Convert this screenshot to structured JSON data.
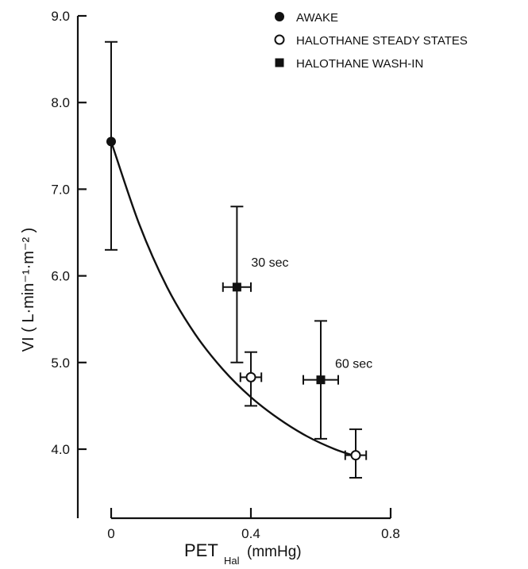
{
  "chart_data": {
    "type": "scatter",
    "xlabel": "PET",
    "xlabel_sub": "Hal",
    "xlabel_unit": "(mmHg)",
    "ylabel": "VI ( L·min⁻¹·m⁻² )",
    "xlim": [
      0,
      0.8
    ],
    "ylim": [
      3.5,
      9.0
    ],
    "x_ticks": [
      0,
      0.4,
      0.8
    ],
    "x_tick_labels": [
      "0",
      "0.4",
      "0.8"
    ],
    "y_ticks": [
      4.0,
      5.0,
      6.0,
      7.0,
      8.0,
      9.0
    ],
    "y_tick_labels": [
      "4.0",
      "5.0",
      "6.0",
      "7.0",
      "8.0",
      "9.0"
    ],
    "grid": false,
    "legend_position": "top-right",
    "series": [
      {
        "name": "AWAKE",
        "marker": "filled-circle",
        "points": [
          {
            "x": 0.0,
            "y": 7.55,
            "y_err": [
              6.3,
              8.7
            ]
          }
        ]
      },
      {
        "name": "HALOTHANE STEADY STATES",
        "marker": "open-circle",
        "points": [
          {
            "x": 0.4,
            "y": 4.83,
            "y_err": [
              4.5,
              5.12
            ],
            "x_err": [
              0.37,
              0.43
            ]
          },
          {
            "x": 0.7,
            "y": 3.93,
            "y_err": [
              3.67,
              4.23
            ],
            "x_err": [
              0.67,
              0.73
            ]
          }
        ]
      },
      {
        "name": "HALOTHANE WASH-IN",
        "marker": "filled-square",
        "points": [
          {
            "x": 0.36,
            "y": 5.87,
            "y_err": [
              5.0,
              6.8
            ],
            "x_err": [
              0.32,
              0.4
            ],
            "label": "30 sec"
          },
          {
            "x": 0.6,
            "y": 4.8,
            "y_err": [
              4.12,
              5.48
            ],
            "x_err": [
              0.55,
              0.65
            ],
            "label": "60 sec"
          }
        ]
      }
    ],
    "fit_curve": [
      [
        0,
        7.55
      ],
      [
        0.08,
        6.6
      ],
      [
        0.16,
        5.87
      ],
      [
        0.24,
        5.33
      ],
      [
        0.32,
        4.92
      ],
      [
        0.4,
        4.6
      ],
      [
        0.48,
        4.35
      ],
      [
        0.56,
        4.15
      ],
      [
        0.64,
        4.0
      ],
      [
        0.7,
        3.92
      ]
    ]
  }
}
